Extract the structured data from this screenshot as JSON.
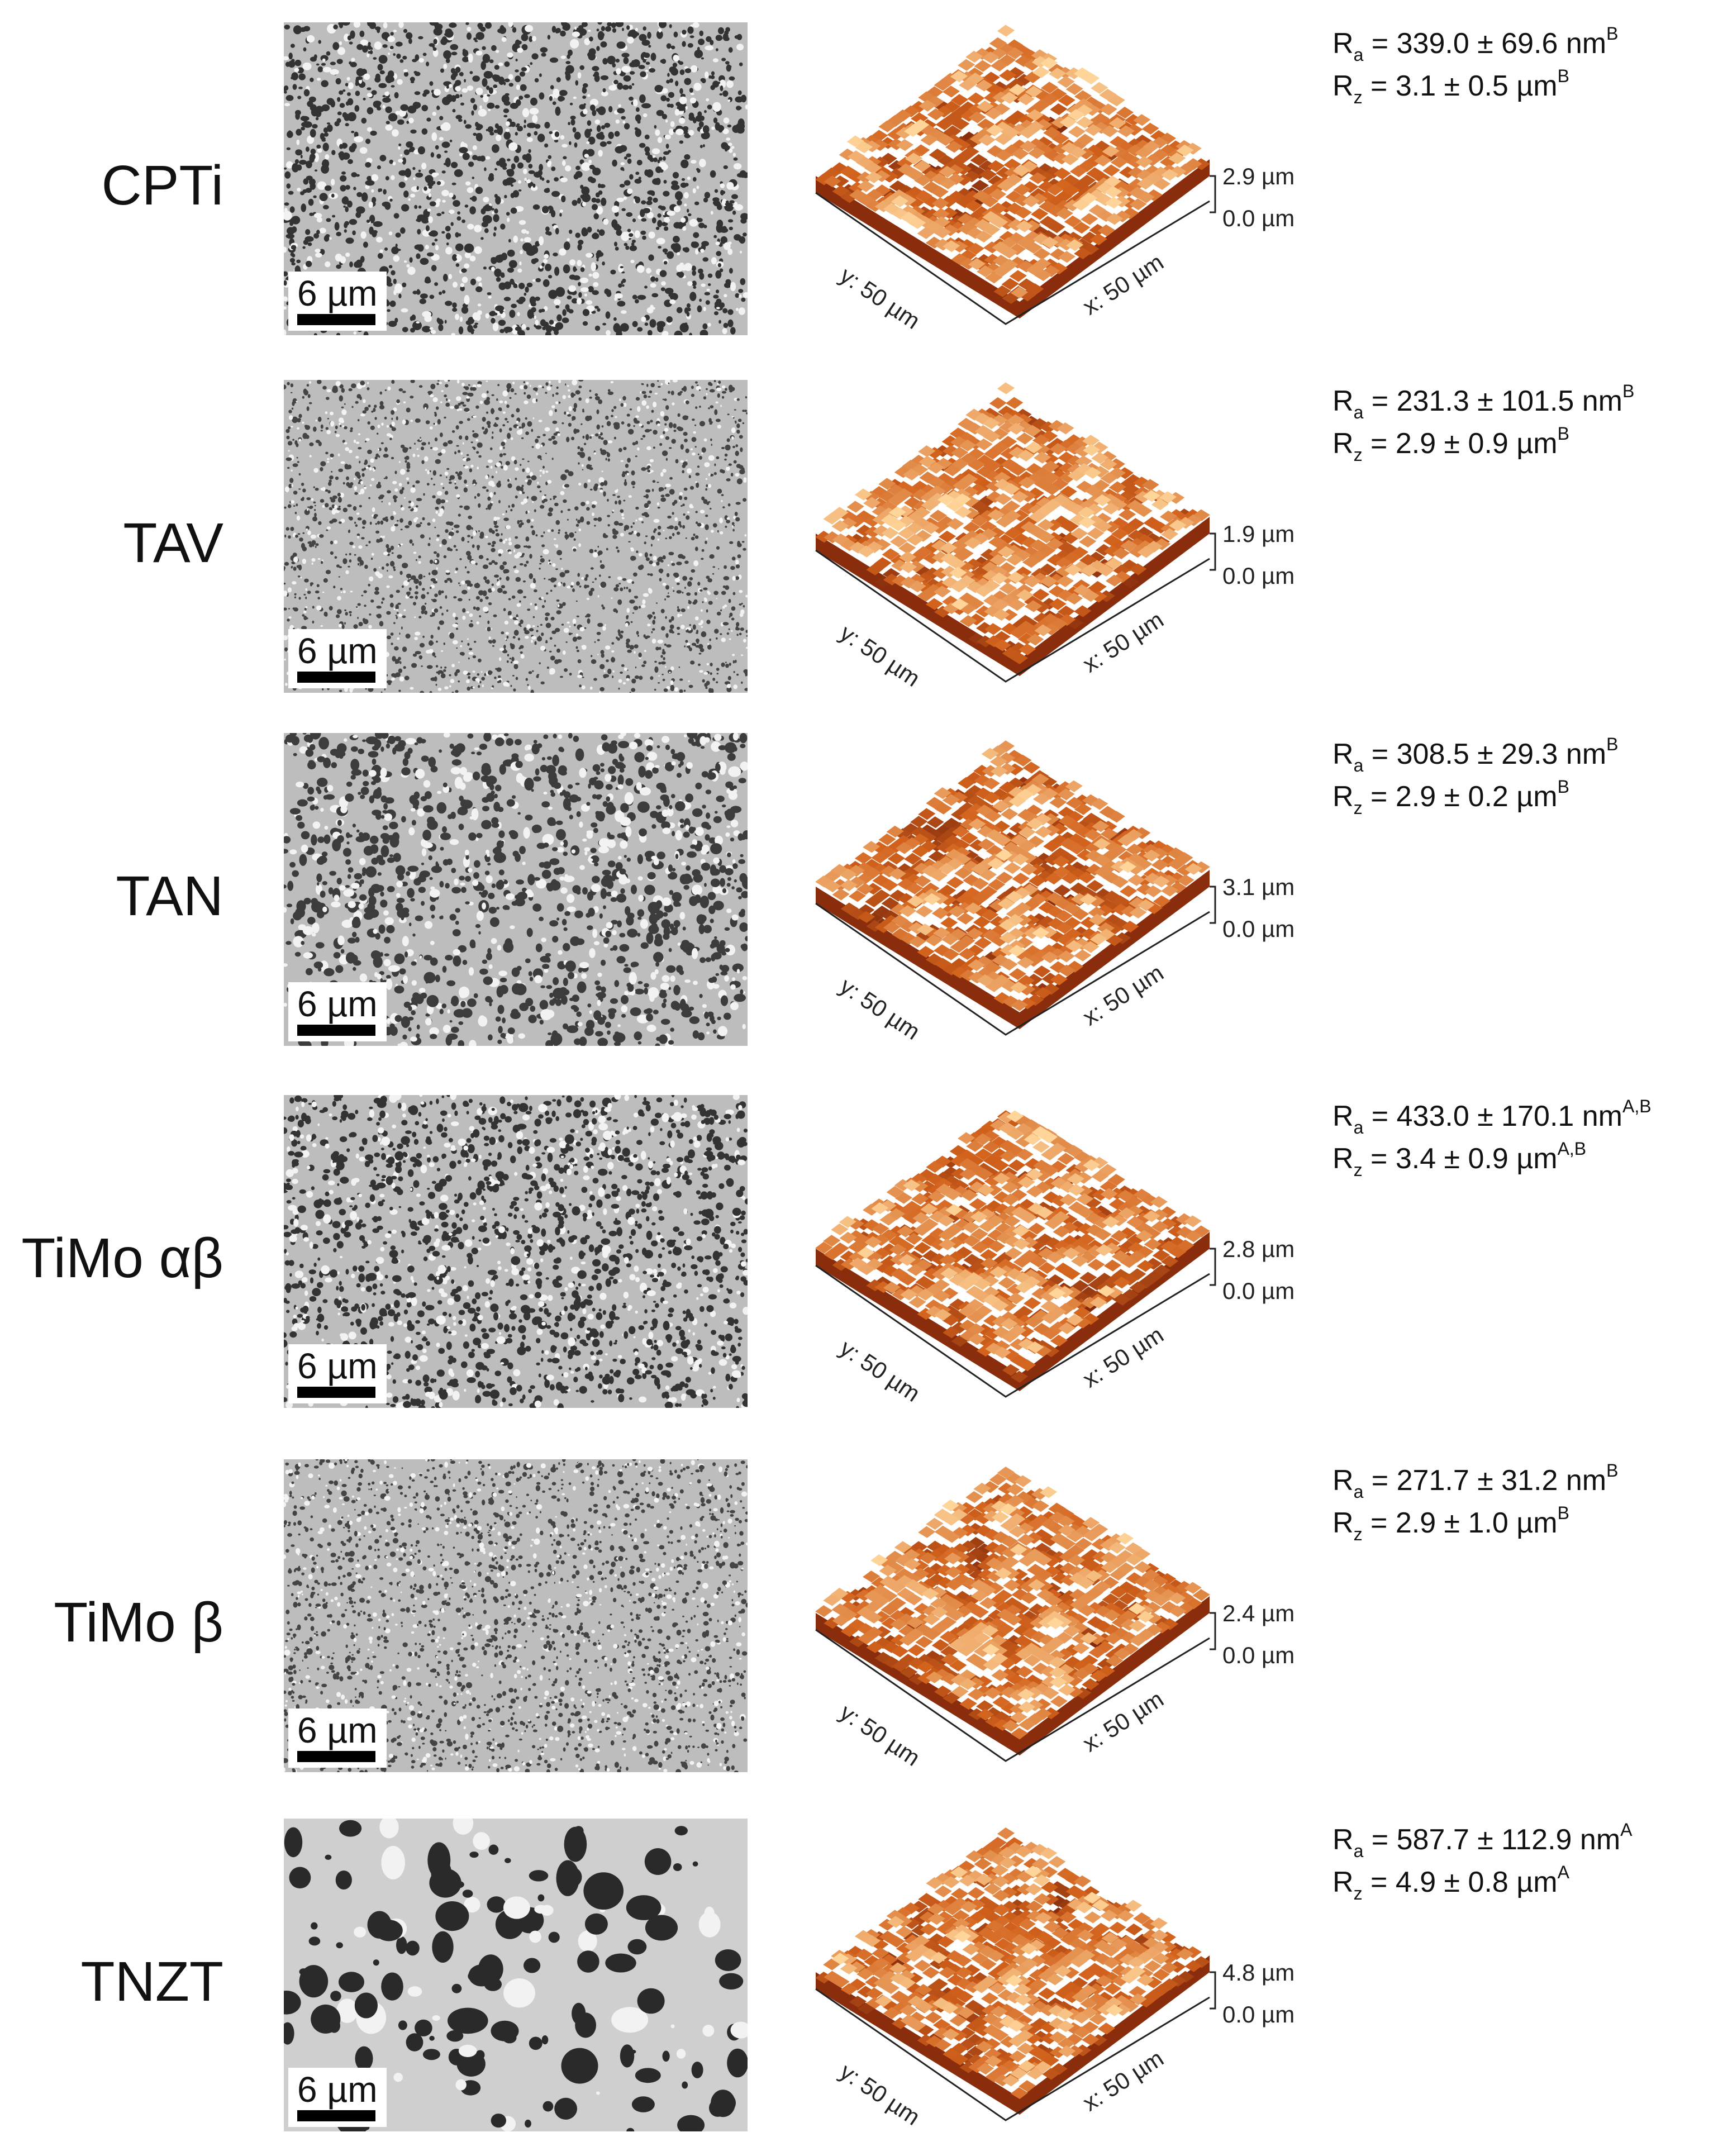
{
  "samples": [
    {
      "name": "CPTi",
      "scale": "6 µm",
      "z_max": "2.9 µm",
      "z_min": "0.0 µm",
      "x_axis": "x: 50 µm",
      "y_axis": "y: 50 µm",
      "ra_sym": "R",
      "ra_sub": "a",
      "ra_val": " = 339.0 ± 69.6 nm",
      "ra_sup": "B",
      "rz_sym": "R",
      "rz_sub": "z",
      "rz_val": " = 3.1 ± 0.5 µm",
      "rz_sup": "B",
      "sem_type": "fine"
    },
    {
      "name": "TAV",
      "scale": "6 µm",
      "z_max": "1.9 µm",
      "z_min": "0.0 µm",
      "x_axis": "x: 50 µm",
      "y_axis": "y: 50 µm",
      "ra_sym": "R",
      "ra_sub": "a",
      "ra_val": " = 231.3 ± 101.5 nm",
      "ra_sup": "B",
      "rz_sym": "R",
      "rz_sub": "z",
      "rz_val": " = 2.9 ± 0.9 µm",
      "rz_sup": "B",
      "sem_type": "veryfine"
    },
    {
      "name": "TAN",
      "scale": "6 µm",
      "z_max": "3.1 µm",
      "z_min": "0.0 µm",
      "x_axis": "x: 50 µm",
      "y_axis": "y: 50 µm",
      "ra_sym": "R",
      "ra_sub": "a",
      "ra_val": " = 308.5 ± 29.3 nm",
      "ra_sup": "B",
      "rz_sym": "R",
      "rz_sub": "z",
      "rz_val": " = 2.9 ± 0.2 µm",
      "rz_sup": "B",
      "sem_type": "medium"
    },
    {
      "name": "TiMo αβ",
      "scale": "6 µm",
      "z_max": "2.8 µm",
      "z_min": "0.0 µm",
      "x_axis": "x: 50 µm",
      "y_axis": "y: 50 µm",
      "ra_sym": "R",
      "ra_sub": "a",
      "ra_val": " = 433.0 ± 170.1 nm",
      "ra_sup": "A,B",
      "rz_sym": "R",
      "rz_sub": "z",
      "rz_val": " = 3.4 ± 0.9 µm",
      "rz_sup": "A,B",
      "sem_type": "fine"
    },
    {
      "name": "TiMo β",
      "scale": "6 µm",
      "z_max": "2.4 µm",
      "z_min": "0.0 µm",
      "x_axis": "x: 50 µm",
      "y_axis": "y: 50 µm",
      "ra_sym": "R",
      "ra_sub": "a",
      "ra_val": " = 271.7 ± 31.2 nm",
      "ra_sup": "B",
      "rz_sym": "R",
      "rz_sub": "z",
      "rz_val": " = 2.9 ± 1.0 µm",
      "rz_sup": "B",
      "sem_type": "veryfine"
    },
    {
      "name": "TNZT",
      "scale": "6 µm",
      "z_max": "4.8 µm",
      "z_min": "0.0 µm",
      "x_axis": "x: 50 µm",
      "y_axis": "y: 50 µm",
      "ra_sym": "R",
      "ra_sub": "a",
      "ra_val": " = 587.7 ± 112.9 nm",
      "ra_sup": "A",
      "rz_sym": "R",
      "rz_sub": "z",
      "rz_val": " = 4.9 ± 0.8 µm",
      "rz_sup": "A",
      "sem_type": "coarse"
    }
  ],
  "colors": {
    "afm_dark": "#6b1a08",
    "afm_mid": "#d2621c",
    "afm_light": "#ffd59a"
  }
}
